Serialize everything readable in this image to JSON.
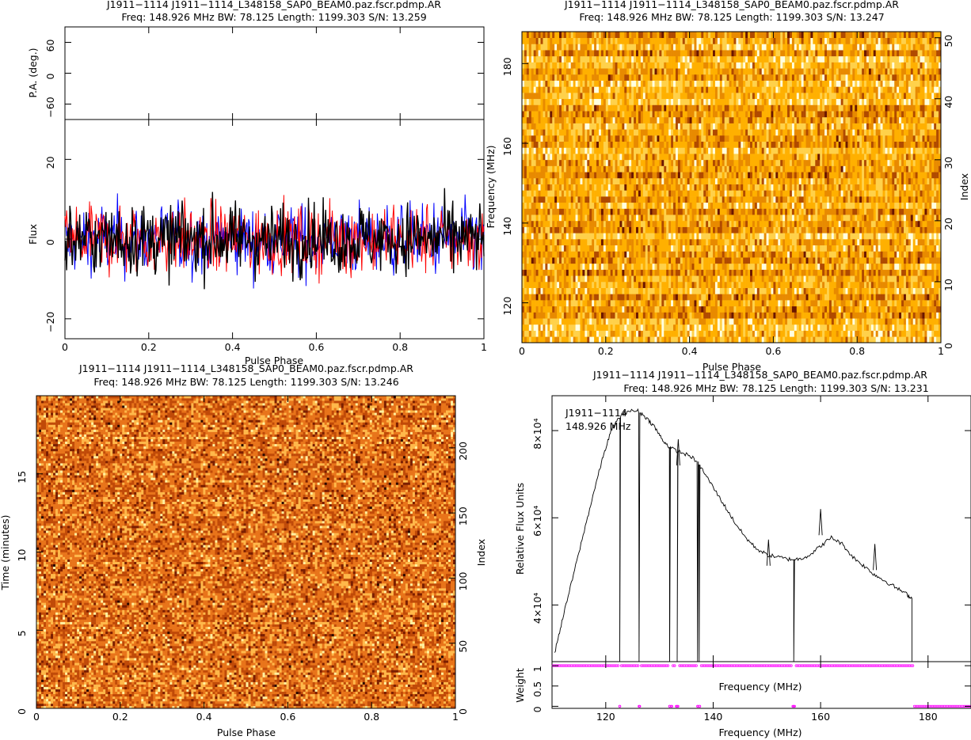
{
  "panels": {
    "tl": {
      "title1": "J1911−1114 J1911−1114_L348158_SAP0_BEAM0.paz.fscr.pdmp.AR",
      "title2": "Freq: 148.926 MHz BW: 78.125 Length: 1199.303 S/N: 13.259"
    },
    "tr": {
      "title1": "J1911−1114 J1911−1114_L348158_SAP0_BEAM0.paz.fscr.pdmp.AR",
      "title2": "Freq: 148.926 MHz BW: 78.125 Length: 1199.303 S/N: 13.247"
    },
    "bl": {
      "title1": "J1911−1114 J1911−1114_L348158_SAP0_BEAM0.paz.fscr.pdmp.AR",
      "title2": "Freq: 148.926 MHz BW: 78.125 Length: 1199.303 S/N: 13.246"
    },
    "br": {
      "title1": "J1911−1114 J1911−1114_L348158_SAP0_BEAM0.paz.fscr.pdmp.AR",
      "title2": "Freq: 148.926 MHz BW: 78.125 Length: 1199.303 S/N: 13.231",
      "annot_name": "J1911−1114",
      "annot_freq": "148.926 MHz"
    }
  },
  "chart_data": [
    {
      "type": "line",
      "id": "pa",
      "ylabel": "P.A. (deg.)",
      "xlim": [
        0,
        1
      ],
      "ylim": [
        -90,
        90
      ],
      "yticks": [
        "60",
        "0",
        "−60"
      ],
      "series": []
    },
    {
      "type": "line",
      "id": "profile",
      "xlabel": "Pulse Phase",
      "ylabel": "Flux",
      "xlim": [
        0,
        1
      ],
      "ylim": [
        -25,
        30
      ],
      "xticks": [
        "0",
        "0.2",
        "0.4",
        "0.6",
        "0.8",
        "1"
      ],
      "yticks": [
        "20",
        "0",
        "−20"
      ],
      "series_colors": [
        "#000000",
        "#ff0000",
        "#0000ff"
      ],
      "noise": {
        "n": 512,
        "mean": 0,
        "amplitude": 8,
        "min": -23,
        "max": 28
      }
    },
    {
      "type": "heatmap",
      "id": "freq_phase",
      "xlabel": "Pulse Phase",
      "ylabel": "Frequency (MHz)",
      "y2label": "Index",
      "xlim": [
        0,
        1
      ],
      "ylim": [
        110,
        188
      ],
      "y2lim": [
        0,
        51
      ],
      "xticks": [
        "0",
        "0.2",
        "0.4",
        "0.6",
        "0.8",
        "1"
      ],
      "yticks": [
        "120",
        "140",
        "160",
        "180"
      ],
      "y2ticks": [
        "0",
        "10",
        "20",
        "30",
        "40",
        "50"
      ],
      "colormap": [
        "#ffffe0",
        "#ffd14a",
        "#ffb000",
        "#e88a00",
        "#b04a00",
        "#6a1600"
      ],
      "bright_rows": [
        48
      ]
    },
    {
      "type": "heatmap",
      "id": "time_phase",
      "xlabel": "Pulse Phase",
      "ylabel": "Time (minutes)",
      "y2label": "Index",
      "xlim": [
        0,
        1
      ],
      "ylim": [
        0,
        20
      ],
      "y2lim": [
        0,
        240
      ],
      "xticks": [
        "0",
        "0.2",
        "0.4",
        "0.6",
        "0.8",
        "1"
      ],
      "yticks": [
        "0",
        "5",
        "10",
        "15"
      ],
      "y2ticks": [
        "0",
        "50",
        "100",
        "150",
        "200"
      ],
      "colormap": [
        "#fff0a0",
        "#ffb84a",
        "#e8741a",
        "#c04a08",
        "#7a1e00",
        "#2a0800"
      ],
      "bright_rows": [
        206
      ]
    },
    {
      "type": "line",
      "id": "bandpass",
      "xlabel": "Frequency (MHz)",
      "ylabel": "Relative Flux Units",
      "xlim": [
        110,
        188
      ],
      "ylim": [
        27000,
        88000
      ],
      "xticks": [
        "120",
        "140",
        "160",
        "180"
      ],
      "yticks": [
        "4×10⁴",
        "6×10⁴",
        "8×10⁴"
      ],
      "x": [
        110.5,
        112,
        114,
        116,
        118,
        119.5,
        121,
        122.5,
        124,
        126,
        127.5,
        129,
        130.5,
        132,
        134,
        136,
        138,
        140,
        142,
        144,
        146,
        148,
        150,
        152,
        154,
        156,
        158,
        160,
        162,
        164,
        166,
        168,
        170,
        172,
        174,
        176,
        177
      ],
      "values": [
        29000,
        37000,
        47000,
        57000,
        67000,
        74000,
        80000,
        83000,
        84500,
        84500,
        83000,
        81000,
        78000,
        76000,
        75000,
        74000,
        71000,
        67000,
        63000,
        59000,
        55500,
        53000,
        51500,
        51000,
        50500,
        50500,
        51500,
        53500,
        55500,
        54000,
        51000,
        49000,
        47000,
        45500,
        44000,
        42500,
        41500
      ],
      "dropouts": [
        122.6,
        126.2,
        131.9,
        133.3,
        137.1,
        137.4,
        155.0,
        177.0
      ],
      "spikes": [
        [
          133.5,
          78000
        ],
        [
          160.0,
          62000
        ],
        [
          150.3,
          55000
        ],
        [
          170.1,
          54000
        ]
      ]
    },
    {
      "type": "scatter",
      "id": "weights",
      "xlabel": "Frequency (MHz)",
      "ylabel": "Weight",
      "xlim": [
        110,
        188
      ],
      "ylim": [
        -0.05,
        1.1
      ],
      "xticks": [
        "120",
        "140",
        "160",
        "180"
      ],
      "yticks": [
        "0",
        "0.5",
        "1"
      ],
      "zero_weight_freqs": [
        122.6,
        126.2,
        131.9,
        132.3,
        133.3,
        137.1,
        137.5,
        155.0
      ],
      "zero_band_start": 177.2,
      "marker_color": "#ff00ff"
    }
  ]
}
